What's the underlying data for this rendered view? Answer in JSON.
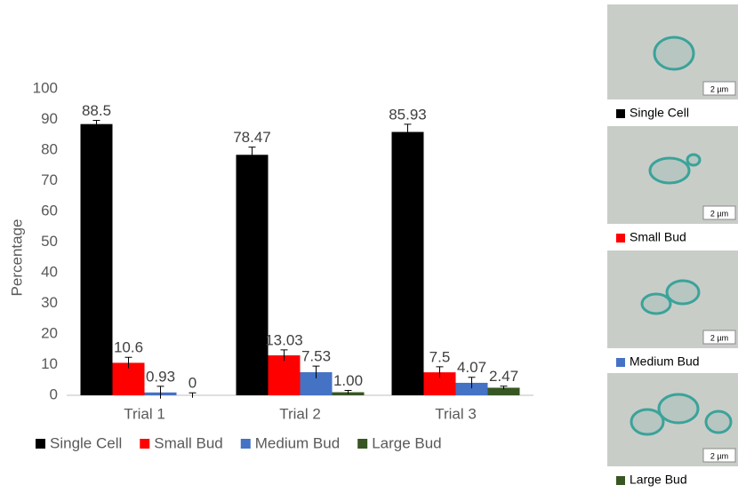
{
  "chart_data": {
    "type": "bar",
    "y_label": "Percentage",
    "categories": [
      "Trial 1",
      "Trial 2",
      "Trial 3"
    ],
    "series": [
      {
        "name": "Single Cell",
        "color": "#000000",
        "values": [
          88.5,
          78.47,
          85.93
        ],
        "errors": [
          1.2,
          2.5,
          2.5
        ]
      },
      {
        "name": "Small Bud",
        "color": "#ff0000",
        "values": [
          10.6,
          13.03,
          7.5
        ],
        "errors": [
          1.8,
          1.8,
          1.8
        ]
      },
      {
        "name": "Medium Bud",
        "color": "#4472c4",
        "values": [
          0.93,
          7.53,
          4.07
        ],
        "errors": [
          2,
          2,
          1.8
        ]
      },
      {
        "name": "Large Bud",
        "color": "#375623",
        "values": [
          0,
          1,
          2.47
        ],
        "value_labels": [
          "0",
          "1.00",
          "2.47"
        ],
        "errors": [
          0.8,
          0.6,
          0.5
        ]
      }
    ],
    "ylim": [
      0,
      100
    ],
    "yticks": [
      0,
      10,
      20,
      30,
      40,
      50,
      60,
      70,
      80,
      90,
      100
    ],
    "grid": false,
    "legend": "bottom"
  },
  "panels": [
    {
      "caption": "Single Cell",
      "scale": "2 µm",
      "color": "#000000"
    },
    {
      "caption": "Small Bud",
      "scale": "2 µm",
      "color": "#ff0000"
    },
    {
      "caption": "Medium Bud",
      "scale": "2 µm",
      "color": "#4472c4"
    },
    {
      "caption": "Large Bud",
      "scale": "2 µm",
      "color": "#375623"
    }
  ]
}
